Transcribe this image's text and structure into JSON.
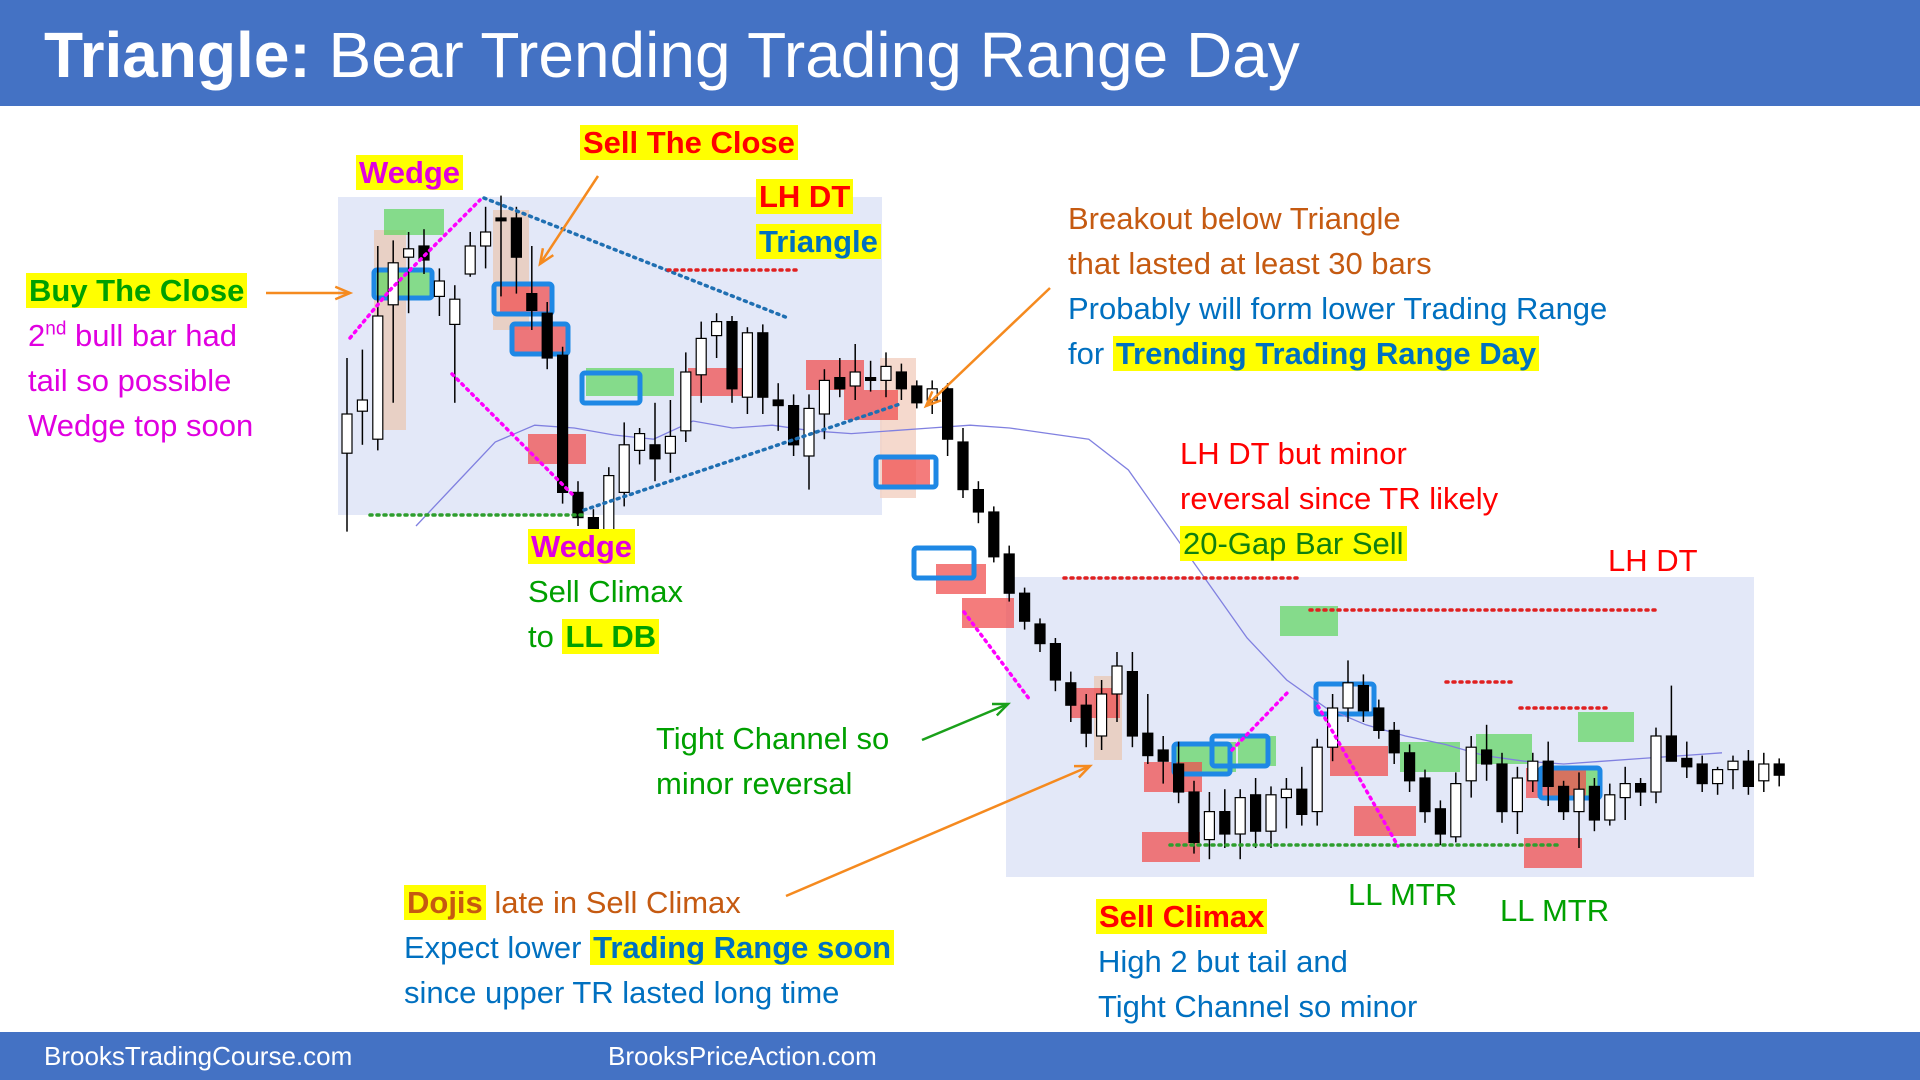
{
  "header": {
    "title_lead": "Triangle:",
    "title_rest": "Bear Trending Trading Range Day",
    "background": "#4472c4"
  },
  "footer": {
    "left": "BrooksTradingCourse.com",
    "center": "BrooksPriceAction.com"
  },
  "annotations": {
    "wedge_top": "Wedge",
    "sell_the_close": "Sell The Close",
    "lh_dt_top": "LH DT",
    "triangle": "Triangle",
    "buy_the_close": "Buy The Close",
    "bull_bar_2": "2",
    "bull_bar_nd": "nd",
    "bull_bar_rest": "bull bar had",
    "tail_possible": "tail so possible",
    "wedge_top_soon": "Wedge top soon",
    "breakout_line1": "Breakout below Triangle",
    "breakout_line2": "that lasted at least 30 bars",
    "breakout_line3": "Probably will form lower Trading Range",
    "breakout_line4_pre": "for",
    "breakout_line4_hl": "Trending Trading Range Day",
    "lh_dt_minor1": "LH DT but minor",
    "lh_dt_minor2": "reversal since TR likely",
    "gap_bar_sell": "20-Gap Bar Sell",
    "wedge_bottom": "Wedge",
    "sell_climax_1": "Sell Climax",
    "to_ll_pre": "to",
    "to_ll_hl": "LL DB",
    "lh_dt_right": "LH DT",
    "tight_channel1": "Tight Channel so",
    "tight_channel2": "minor reversal",
    "ll_mtr_1": "LL MTR",
    "ll_mtr_2": "LL MTR",
    "dojis_hl": "Dojis",
    "dojis_rest": "late in Sell Climax",
    "expect_pre": "Expect lower",
    "expect_hl": "Trading Range soon",
    "since_upper": "since upper TR lasted long time",
    "sell_climax_2": "Sell Climax",
    "high2_line1": "High 2 but tail and",
    "high2_line2": "Tight Channel so minor"
  },
  "colors": {
    "highlight": "#ffff00",
    "bull_box": "#5cd65c",
    "bear_box": "#f05050",
    "signal_box": "#1e88e5",
    "wedge_line": "#ff00ff",
    "ema": "#8080e0",
    "range_bg": "#e3e8f8"
  },
  "chart_data": {
    "type": "candlestick",
    "title": "Triangle: Bear Trending Trading Range Day",
    "bars": [
      {
        "o": 1612,
        "h": 1680,
        "l": 1556,
        "c": 1640
      },
      {
        "o": 1642,
        "h": 1686,
        "l": 1618,
        "c": 1650
      },
      {
        "o": 1622,
        "h": 1760,
        "l": 1614,
        "c": 1710
      },
      {
        "o": 1718,
        "h": 1764,
        "l": 1648,
        "c": 1748
      },
      {
        "o": 1752,
        "h": 1770,
        "l": 1712,
        "c": 1758
      },
      {
        "o": 1760,
        "h": 1772,
        "l": 1740,
        "c": 1750
      },
      {
        "o": 1724,
        "h": 1744,
        "l": 1710,
        "c": 1735
      },
      {
        "o": 1704,
        "h": 1732,
        "l": 1648,
        "c": 1722
      },
      {
        "o": 1740,
        "h": 1770,
        "l": 1738,
        "c": 1760
      },
      {
        "o": 1760,
        "h": 1788,
        "l": 1744,
        "c": 1770
      },
      {
        "o": 1780,
        "h": 1796,
        "l": 1724,
        "c": 1778
      },
      {
        "o": 1780,
        "h": 1788,
        "l": 1726,
        "c": 1752
      },
      {
        "o": 1726,
        "h": 1760,
        "l": 1700,
        "c": 1714
      },
      {
        "o": 1712,
        "h": 1720,
        "l": 1672,
        "c": 1680
      },
      {
        "o": 1682,
        "h": 1688,
        "l": 1576,
        "c": 1584
      },
      {
        "o": 1584,
        "h": 1592,
        "l": 1560,
        "c": 1566
      },
      {
        "o": 1566,
        "h": 1572,
        "l": 1542,
        "c": 1548
      },
      {
        "o": 1544,
        "h": 1602,
        "l": 1534,
        "c": 1596
      },
      {
        "o": 1584,
        "h": 1634,
        "l": 1574,
        "c": 1618
      },
      {
        "o": 1614,
        "h": 1630,
        "l": 1604,
        "c": 1626
      },
      {
        "o": 1618,
        "h": 1648,
        "l": 1592,
        "c": 1608
      },
      {
        "o": 1612,
        "h": 1650,
        "l": 1598,
        "c": 1624
      },
      {
        "o": 1628,
        "h": 1684,
        "l": 1620,
        "c": 1670
      },
      {
        "o": 1668,
        "h": 1706,
        "l": 1648,
        "c": 1694
      },
      {
        "o": 1696,
        "h": 1712,
        "l": 1680,
        "c": 1706
      },
      {
        "o": 1706,
        "h": 1710,
        "l": 1648,
        "c": 1658
      },
      {
        "o": 1652,
        "h": 1702,
        "l": 1640,
        "c": 1698
      },
      {
        "o": 1698,
        "h": 1704,
        "l": 1640,
        "c": 1652
      },
      {
        "o": 1650,
        "h": 1662,
        "l": 1628,
        "c": 1646
      },
      {
        "o": 1646,
        "h": 1654,
        "l": 1610,
        "c": 1618
      },
      {
        "o": 1610,
        "h": 1654,
        "l": 1586,
        "c": 1644
      },
      {
        "o": 1640,
        "h": 1672,
        "l": 1622,
        "c": 1664
      },
      {
        "o": 1666,
        "h": 1680,
        "l": 1652,
        "c": 1658
      },
      {
        "o": 1660,
        "h": 1690,
        "l": 1650,
        "c": 1670
      },
      {
        "o": 1666,
        "h": 1678,
        "l": 1656,
        "c": 1664
      },
      {
        "o": 1664,
        "h": 1684,
        "l": 1652,
        "c": 1674
      },
      {
        "o": 1670,
        "h": 1676,
        "l": 1650,
        "c": 1658
      },
      {
        "o": 1660,
        "h": 1664,
        "l": 1644,
        "c": 1648
      },
      {
        "o": 1650,
        "h": 1664,
        "l": 1640,
        "c": 1658
      },
      {
        "o": 1658,
        "h": 1662,
        "l": 1610,
        "c": 1622
      },
      {
        "o": 1620,
        "h": 1630,
        "l": 1580,
        "c": 1586
      },
      {
        "o": 1586,
        "h": 1592,
        "l": 1562,
        "c": 1570
      },
      {
        "o": 1570,
        "h": 1574,
        "l": 1534,
        "c": 1538
      },
      {
        "o": 1540,
        "h": 1546,
        "l": 1506,
        "c": 1512
      },
      {
        "o": 1512,
        "h": 1516,
        "l": 1486,
        "c": 1492
      },
      {
        "o": 1490,
        "h": 1494,
        "l": 1470,
        "c": 1476
      },
      {
        "o": 1476,
        "h": 1480,
        "l": 1442,
        "c": 1450
      },
      {
        "o": 1448,
        "h": 1456,
        "l": 1420,
        "c": 1432
      },
      {
        "o": 1432,
        "h": 1440,
        "l": 1402,
        "c": 1412
      },
      {
        "o": 1410,
        "h": 1450,
        "l": 1400,
        "c": 1440
      },
      {
        "o": 1440,
        "h": 1470,
        "l": 1420,
        "c": 1460
      },
      {
        "o": 1456,
        "h": 1470,
        "l": 1402,
        "c": 1410
      },
      {
        "o": 1412,
        "h": 1440,
        "l": 1390,
        "c": 1396
      },
      {
        "o": 1400,
        "h": 1410,
        "l": 1376,
        "c": 1392
      },
      {
        "o": 1390,
        "h": 1406,
        "l": 1362,
        "c": 1370
      },
      {
        "o": 1370,
        "h": 1378,
        "l": 1326,
        "c": 1334
      },
      {
        "o": 1336,
        "h": 1370,
        "l": 1322,
        "c": 1356
      },
      {
        "o": 1356,
        "h": 1372,
        "l": 1330,
        "c": 1340
      },
      {
        "o": 1340,
        "h": 1372,
        "l": 1322,
        "c": 1366
      },
      {
        "o": 1368,
        "h": 1380,
        "l": 1330,
        "c": 1342
      },
      {
        "o": 1342,
        "h": 1374,
        "l": 1330,
        "c": 1368
      },
      {
        "o": 1366,
        "h": 1380,
        "l": 1344,
        "c": 1372
      },
      {
        "o": 1372,
        "h": 1388,
        "l": 1346,
        "c": 1354
      },
      {
        "o": 1356,
        "h": 1408,
        "l": 1346,
        "c": 1402
      },
      {
        "o": 1402,
        "h": 1440,
        "l": 1392,
        "c": 1430
      },
      {
        "o": 1430,
        "h": 1464,
        "l": 1420,
        "c": 1448
      },
      {
        "o": 1446,
        "h": 1454,
        "l": 1420,
        "c": 1428
      },
      {
        "o": 1430,
        "h": 1436,
        "l": 1408,
        "c": 1414
      },
      {
        "o": 1414,
        "h": 1420,
        "l": 1390,
        "c": 1398
      },
      {
        "o": 1398,
        "h": 1404,
        "l": 1370,
        "c": 1378
      },
      {
        "o": 1380,
        "h": 1386,
        "l": 1348,
        "c": 1356
      },
      {
        "o": 1358,
        "h": 1364,
        "l": 1332,
        "c": 1340
      },
      {
        "o": 1338,
        "h": 1384,
        "l": 1334,
        "c": 1376
      },
      {
        "o": 1378,
        "h": 1410,
        "l": 1366,
        "c": 1402
      },
      {
        "o": 1400,
        "h": 1418,
        "l": 1378,
        "c": 1390
      },
      {
        "o": 1390,
        "h": 1398,
        "l": 1348,
        "c": 1356
      },
      {
        "o": 1356,
        "h": 1388,
        "l": 1340,
        "c": 1380
      },
      {
        "o": 1378,
        "h": 1398,
        "l": 1370,
        "c": 1392
      },
      {
        "o": 1392,
        "h": 1406,
        "l": 1360,
        "c": 1374
      },
      {
        "o": 1374,
        "h": 1378,
        "l": 1350,
        "c": 1356
      },
      {
        "o": 1356,
        "h": 1384,
        "l": 1330,
        "c": 1372
      },
      {
        "o": 1374,
        "h": 1380,
        "l": 1342,
        "c": 1350
      },
      {
        "o": 1350,
        "h": 1376,
        "l": 1346,
        "c": 1368
      },
      {
        "o": 1366,
        "h": 1388,
        "l": 1350,
        "c": 1376
      },
      {
        "o": 1376,
        "h": 1380,
        "l": 1360,
        "c": 1370
      },
      {
        "o": 1370,
        "h": 1416,
        "l": 1362,
        "c": 1410
      },
      {
        "o": 1410,
        "h": 1446,
        "l": 1396,
        "c": 1392
      },
      {
        "o": 1394,
        "h": 1406,
        "l": 1380,
        "c": 1388
      },
      {
        "o": 1390,
        "h": 1396,
        "l": 1370,
        "c": 1376
      },
      {
        "o": 1376,
        "h": 1388,
        "l": 1368,
        "c": 1386
      },
      {
        "o": 1386,
        "h": 1396,
        "l": 1372,
        "c": 1392
      },
      {
        "o": 1392,
        "h": 1400,
        "l": 1368,
        "c": 1374
      },
      {
        "o": 1378,
        "h": 1398,
        "l": 1370,
        "c": 1390
      },
      {
        "o": 1390,
        "h": 1394,
        "l": 1374,
        "c": 1382
      }
    ],
    "ema": [
      1560,
      1590,
      1620,
      1632,
      1630,
      1625,
      1622,
      1635,
      1630,
      1632,
      1628,
      1626,
      1628,
      1630,
      1632,
      1630,
      1626,
      1622,
      1600,
      1560,
      1520,
      1480,
      1450,
      1430,
      1418,
      1410,
      1404,
      1396,
      1392,
      1390,
      1392,
      1394,
      1396,
      1398
    ]
  }
}
